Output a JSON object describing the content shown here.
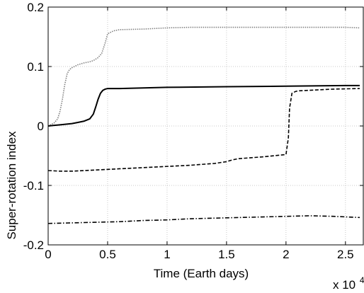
{
  "chart_data": {
    "type": "line",
    "title": "",
    "xlabel": "Time (Earth days)",
    "ylabel": "Super-rotation index",
    "x_multiplier_label": "x 10",
    "x_multiplier_exponent": "4",
    "xlim": [
      0,
      2.65
    ],
    "ylim": [
      -0.2,
      0.2
    ],
    "x_unit_scale": 10000,
    "xticks": [
      0,
      0.5,
      1,
      1.5,
      2,
      2.5
    ],
    "xtick_labels": [
      "0",
      "0.5",
      "1",
      "1.5",
      "2",
      "2.5"
    ],
    "yticks": [
      -0.2,
      -0.1,
      0,
      0.1,
      0.2
    ],
    "ytick_labels": [
      "-0.2",
      "-0.1",
      "0",
      "0.1",
      "0.2"
    ],
    "grid": true,
    "legend": "none",
    "series": [
      {
        "style": "dotted",
        "color": "#808080",
        "x": [
          0,
          0.05,
          0.08,
          0.1,
          0.12,
          0.14,
          0.16,
          0.18,
          0.2,
          0.25,
          0.3,
          0.35,
          0.38,
          0.42,
          0.45,
          0.48,
          0.5,
          0.55,
          0.6,
          0.8,
          1.0,
          1.2,
          1.5,
          2.0,
          2.5,
          2.62
        ],
        "y": [
          0,
          0.005,
          0.012,
          0.025,
          0.045,
          0.07,
          0.088,
          0.095,
          0.098,
          0.103,
          0.106,
          0.108,
          0.11,
          0.115,
          0.122,
          0.14,
          0.155,
          0.16,
          0.162,
          0.163,
          0.165,
          0.166,
          0.166,
          0.166,
          0.166,
          0.165
        ]
      },
      {
        "style": "solid",
        "color": "#000000",
        "x": [
          0,
          0.05,
          0.1,
          0.15,
          0.2,
          0.25,
          0.3,
          0.35,
          0.38,
          0.4,
          0.42,
          0.44,
          0.46,
          0.48,
          0.5,
          0.6,
          0.8,
          1.0,
          1.5,
          2.0,
          2.5,
          2.62
        ],
        "y": [
          0,
          0.001,
          0.002,
          0.003,
          0.004,
          0.006,
          0.008,
          0.012,
          0.02,
          0.032,
          0.045,
          0.055,
          0.06,
          0.062,
          0.063,
          0.063,
          0.064,
          0.065,
          0.066,
          0.067,
          0.068,
          0.068
        ]
      },
      {
        "style": "dashed",
        "color": "#000000",
        "x": [
          0,
          0.1,
          0.2,
          0.4,
          0.6,
          0.8,
          1.0,
          1.2,
          1.4,
          1.5,
          1.55,
          1.6,
          1.8,
          2.0,
          2.02,
          2.03,
          2.05,
          2.08,
          2.1,
          2.2,
          2.4,
          2.62
        ],
        "y": [
          -0.075,
          -0.076,
          -0.076,
          -0.074,
          -0.072,
          -0.07,
          -0.068,
          -0.066,
          -0.063,
          -0.06,
          -0.057,
          -0.055,
          -0.052,
          -0.048,
          -0.02,
          0.03,
          0.055,
          0.058,
          0.059,
          0.06,
          0.062,
          0.063
        ]
      },
      {
        "style": "dashdot",
        "color": "#000000",
        "x": [
          0,
          0.2,
          0.4,
          0.6,
          0.8,
          1.0,
          1.2,
          1.4,
          1.6,
          1.8,
          2.0,
          2.2,
          2.4,
          2.62
        ],
        "y": [
          -0.164,
          -0.163,
          -0.162,
          -0.161,
          -0.159,
          -0.158,
          -0.156,
          -0.155,
          -0.154,
          -0.153,
          -0.152,
          -0.151,
          -0.152,
          -0.154
        ]
      }
    ]
  }
}
